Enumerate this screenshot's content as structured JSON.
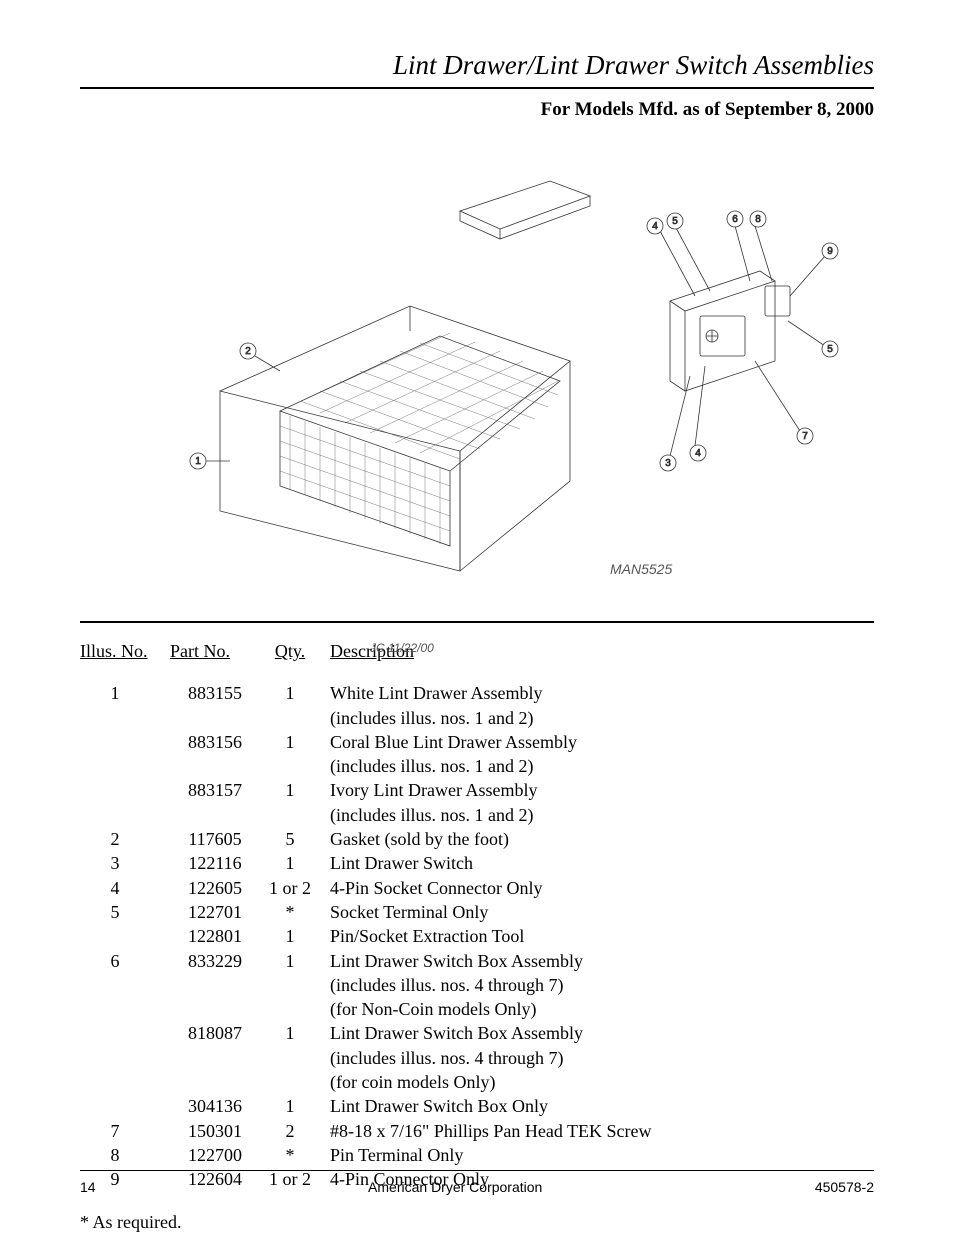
{
  "header": {
    "title": "Lint Drawer/Lint Drawer Switch Assemblies",
    "subtitle": "For Models Mfd. as of September 8, 2000"
  },
  "diagram": {
    "man_label": "MAN5525",
    "jc_label": "JC 11/22/00",
    "callouts_left": [
      "1",
      "2"
    ],
    "callouts_right": [
      "3",
      "4",
      "4",
      "5",
      "5",
      "6",
      "7",
      "8",
      "9"
    ]
  },
  "table": {
    "headers": {
      "illus": "Illus. No.",
      "part": "Part No.",
      "qty": "Qty.",
      "desc": "Description"
    },
    "rows": [
      {
        "illus": "1",
        "part": "883155",
        "qty": "1",
        "desc": "White Lint Drawer Assembly"
      },
      {
        "illus": "",
        "part": "",
        "qty": "",
        "desc": "(includes illus. nos. 1 and 2)"
      },
      {
        "illus": "",
        "part": "883156",
        "qty": "1",
        "desc": "Coral Blue Lint Drawer Assembly"
      },
      {
        "illus": "",
        "part": "",
        "qty": "",
        "desc": "(includes illus. nos. 1 and 2)"
      },
      {
        "illus": "",
        "part": "883157",
        "qty": "1",
        "desc": "Ivory Lint Drawer Assembly"
      },
      {
        "illus": "",
        "part": "",
        "qty": "",
        "desc": "(includes illus. nos. 1 and 2)"
      },
      {
        "illus": "2",
        "part": "117605",
        "qty": "5",
        "desc": "Gasket (sold by the foot)"
      },
      {
        "illus": "3",
        "part": "122116",
        "qty": "1",
        "desc": "Lint Drawer Switch"
      },
      {
        "illus": "4",
        "part": "122605",
        "qty": "1 or 2",
        "desc": "4-Pin Socket Connector Only"
      },
      {
        "illus": "5",
        "part": "122701",
        "qty": "*",
        "desc": "Socket Terminal Only"
      },
      {
        "illus": "",
        "part": "122801",
        "qty": "1",
        "desc": "Pin/Socket Extraction Tool"
      },
      {
        "illus": "6",
        "part": "833229",
        "qty": "1",
        "desc": "Lint Drawer Switch Box Assembly"
      },
      {
        "illus": "",
        "part": "",
        "qty": "",
        "desc": "(includes illus. nos. 4 through 7)"
      },
      {
        "illus": "",
        "part": "",
        "qty": "",
        "desc": "(for Non-Coin models Only)"
      },
      {
        "illus": "",
        "part": "818087",
        "qty": "1",
        "desc": "Lint Drawer Switch Box Assembly"
      },
      {
        "illus": "",
        "part": "",
        "qty": "",
        "desc": "(includes illus. nos. 4 through 7)"
      },
      {
        "illus": "",
        "part": "",
        "qty": "",
        "desc": "(for coin models Only)"
      },
      {
        "illus": "",
        "part": "304136",
        "qty": "1",
        "desc": "Lint Drawer Switch Box Only"
      },
      {
        "illus": "7",
        "part": "150301",
        "qty": "2",
        "desc": "#8-18 x 7/16\" Phillips Pan Head TEK Screw"
      },
      {
        "illus": "8",
        "part": "122700",
        "qty": "*",
        "desc": "Pin Terminal Only"
      },
      {
        "illus": "9",
        "part": "122604",
        "qty": "1 or 2",
        "desc": "4-Pin Connector Only"
      }
    ]
  },
  "footnote": "*    As required.",
  "footer": {
    "page": "14",
    "company": "American Dryer Corporation",
    "doc": "450578-2"
  }
}
